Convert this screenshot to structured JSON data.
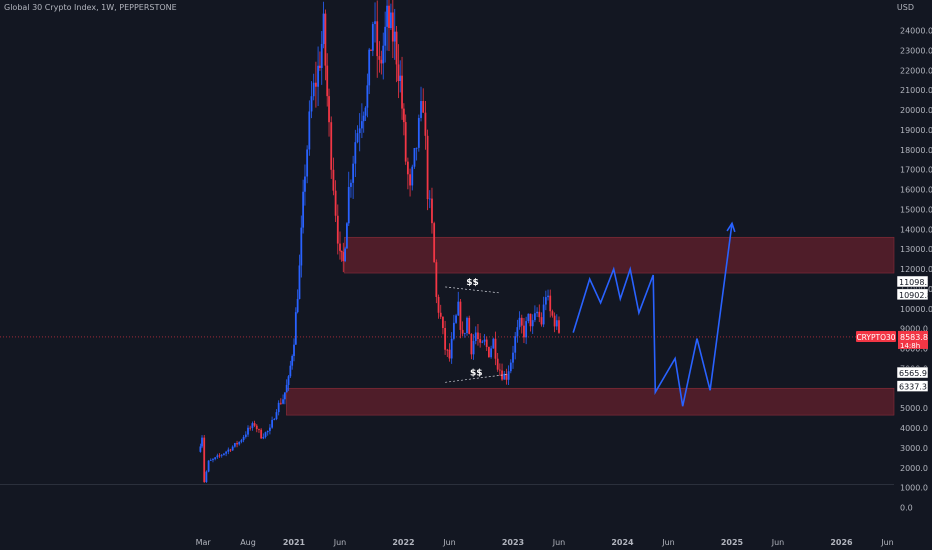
{
  "header": {
    "title": "Global 30 Crypto Index, 1W, PEPPERSTONE",
    "currency": "USD"
  },
  "colors": {
    "background": "#131722",
    "up": "#2962ff",
    "down": "#f23645",
    "zone_fill": "#5b1e2a",
    "zone_edge": "#8a2c3a",
    "projection": "#2962ff",
    "axis_text": "#b2b5be",
    "price_tag": "#f23645"
  },
  "chart_data": {
    "type": "candlestick",
    "ylim": [
      0,
      25000
    ],
    "y_ticks": [
      0,
      1000,
      2000,
      3000,
      4000,
      5000,
      6000,
      7000,
      8000,
      9000,
      10000,
      11000,
      12000,
      13000,
      14000,
      15000,
      16000,
      17000,
      18000,
      19000,
      20000,
      21000,
      22000,
      23000,
      24000
    ],
    "y_tick_labels": [
      "0.0",
      "1000.0",
      "2000.0",
      "3000.0",
      "4000.0",
      "5000.0",
      "6000.0",
      "7000.0",
      "8000.0",
      "9000.0",
      "10000.0",
      "11000.0",
      "12000.0",
      "13000.0",
      "14000.0",
      "15000.0",
      "16000.0",
      "17000.0",
      "18000.0",
      "19000.0",
      "20000.0",
      "21000.0",
      "22000.0",
      "23000.0",
      "24000.0"
    ],
    "x_ticks": [
      "Mar",
      "Aug",
      "2021",
      "Jun",
      "2022",
      "Jun",
      "2023",
      "Jun",
      "2024",
      "Jun",
      "2025",
      "Jun",
      "2026",
      "Jun"
    ],
    "x_tick_values": [
      2020.17,
      2020.58,
      2021.0,
      2021.42,
      2022.0,
      2022.42,
      2023.0,
      2023.42,
      2024.0,
      2024.42,
      2025.0,
      2025.42,
      2026.0,
      2026.42
    ],
    "xlim": [
      2020.0,
      2026.5
    ],
    "series": [
      {
        "type": "weekly_ohlc",
        "path": [
          [
            2020.13,
            2800
          ],
          [
            2020.16,
            3600
          ],
          [
            2020.18,
            1300
          ],
          [
            2020.22,
            2300
          ],
          [
            2020.26,
            2400
          ],
          [
            2020.32,
            2600
          ],
          [
            2020.4,
            2900
          ],
          [
            2020.5,
            3300
          ],
          [
            2020.58,
            3900
          ],
          [
            2020.64,
            4200
          ],
          [
            2020.7,
            3600
          ],
          [
            2020.78,
            3900
          ],
          [
            2020.84,
            5000
          ],
          [
            2020.9,
            5500
          ],
          [
            2020.95,
            6400
          ],
          [
            2021.0,
            8500
          ],
          [
            2021.05,
            12000
          ],
          [
            2021.1,
            17000
          ],
          [
            2021.16,
            20500
          ],
          [
            2021.22,
            22000
          ],
          [
            2021.27,
            24000
          ],
          [
            2021.32,
            19000
          ],
          [
            2021.38,
            15000
          ],
          [
            2021.42,
            12500
          ],
          [
            2021.45,
            12300
          ],
          [
            2021.5,
            16000
          ],
          [
            2021.56,
            18500
          ],
          [
            2021.62,
            20000
          ],
          [
            2021.67,
            21000
          ],
          [
            2021.72,
            24500
          ],
          [
            2021.78,
            22000
          ],
          [
            2021.85,
            24500
          ],
          [
            2021.92,
            23500
          ],
          [
            2021.97,
            21500
          ],
          [
            2022.02,
            17500
          ],
          [
            2022.06,
            15800
          ],
          [
            2022.1,
            17500
          ],
          [
            2022.14,
            19000
          ],
          [
            2022.18,
            20500
          ],
          [
            2022.22,
            16000
          ],
          [
            2022.26,
            14000
          ],
          [
            2022.3,
            10500
          ],
          [
            2022.34,
            9500
          ],
          [
            2022.38,
            8000
          ],
          [
            2022.42,
            7500
          ],
          [
            2022.46,
            9000
          ],
          [
            2022.5,
            10000
          ],
          [
            2022.54,
            8500
          ],
          [
            2022.58,
            9500
          ],
          [
            2022.62,
            8000
          ],
          [
            2022.66,
            8800
          ],
          [
            2022.7,
            8000
          ],
          [
            2022.74,
            8300
          ],
          [
            2022.78,
            7800
          ],
          [
            2022.82,
            8400
          ],
          [
            2022.86,
            7200
          ],
          [
            2022.9,
            6700
          ],
          [
            2022.94,
            6600
          ],
          [
            2022.98,
            7400
          ],
          [
            2023.02,
            8500
          ],
          [
            2023.06,
            9200
          ],
          [
            2023.1,
            8800
          ],
          [
            2023.14,
            9500
          ],
          [
            2023.18,
            9200
          ],
          [
            2023.22,
            9800
          ],
          [
            2023.26,
            9300
          ],
          [
            2023.3,
            10800
          ],
          [
            2023.34,
            9800
          ],
          [
            2023.38,
            9400
          ],
          [
            2023.42,
            8900
          ]
        ]
      },
      {
        "name": "",
        "type": "projection",
        "points": [
          [
            2023.55,
            8800
          ],
          [
            2023.7,
            11500
          ],
          [
            2023.8,
            10300
          ],
          [
            2023.92,
            12000
          ],
          [
            2023.98,
            10500
          ],
          [
            2024.07,
            12000
          ],
          [
            2024.15,
            9800
          ],
          [
            2024.28,
            11700
          ],
          [
            2024.3,
            5800
          ],
          [
            2024.48,
            7500
          ],
          [
            2024.55,
            5100
          ],
          [
            2024.68,
            8500
          ],
          [
            2024.8,
            5900
          ],
          [
            2025.0,
            14300
          ]
        ]
      }
    ],
    "zones": [
      {
        "from": 11800,
        "to": 13600,
        "x_start": 2021.46
      },
      {
        "from": 4650,
        "to": 6000,
        "x_start": 2020.93
      }
    ],
    "trendlines": [
      {
        "points": [
          [
            2022.38,
            11100
          ],
          [
            2022.88,
            10800
          ]
        ],
        "label": "$$"
      },
      {
        "points": [
          [
            2022.38,
            6300
          ],
          [
            2022.95,
            6700
          ]
        ],
        "label": "$$"
      }
    ],
    "hlines": [
      {
        "y": 1150
      },
      {
        "y": 8583.8
      }
    ],
    "price_labels": [
      {
        "value": 11098.1,
        "text": "11098.1",
        "style": "white"
      },
      {
        "value": 10902.8,
        "text": "10902.8",
        "style": "white"
      },
      {
        "value": 8583.8,
        "text": "8583.8",
        "style": "red",
        "tag": "CRYPTO30",
        "sub": "14:8h"
      },
      {
        "value": 6565.9,
        "text": "6565.9",
        "style": "white"
      },
      {
        "value": 6337.3,
        "text": "6337.3",
        "style": "white"
      }
    ]
  }
}
